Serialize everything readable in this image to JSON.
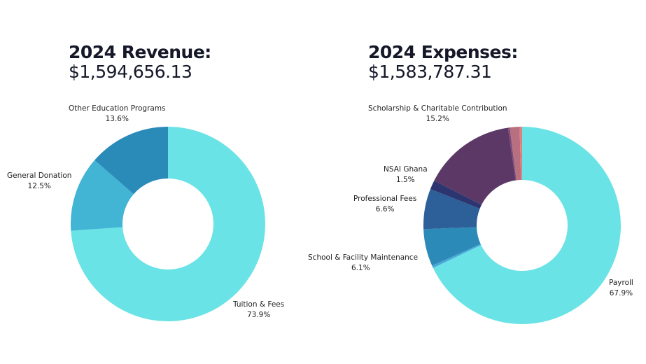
{
  "chart_data": [
    {
      "type": "pie",
      "title": "2024 Revenue:",
      "total": "$1,594,656.13",
      "slices": [
        {
          "label": "Tuition & Fees",
          "value": 73.9,
          "display": "73.9%",
          "color": "#6ae3e6"
        },
        {
          "label": "General Donation",
          "value": 12.5,
          "display": "12.5%",
          "color": "#42b4d4"
        },
        {
          "label": "Other Education Programs",
          "value": 13.6,
          "display": "13.6%",
          "color": "#2a8bb8"
        }
      ]
    },
    {
      "type": "pie",
      "title": "2024 Expenses:",
      "total": "$1,583,787.31",
      "slices": [
        {
          "label": "Payroll",
          "value": 67.9,
          "display": "67.9%",
          "color": "#6ae3e6"
        },
        {
          "label": "",
          "value": 0.4,
          "display": "",
          "color": "#4aa8d8"
        },
        {
          "label": "School & Facility Maintenance",
          "value": 6.1,
          "display": "6.1%",
          "color": "#2b8ab8"
        },
        {
          "label": "Professional Fees",
          "value": 6.6,
          "display": "6.6%",
          "color": "#2d5f98"
        },
        {
          "label": "NSAI Ghana",
          "value": 1.5,
          "display": "1.5%",
          "color": "#2c3570"
        },
        {
          "label": "Scholarship & Charitable Contribution",
          "value": 15.2,
          "display": "15.2%",
          "color": "#5c3866"
        },
        {
          "label": "",
          "value": 0.3,
          "display": "",
          "color": "#7a4a78"
        },
        {
          "label": "",
          "value": 1.6,
          "display": "",
          "color": "#b87080"
        },
        {
          "label": "",
          "value": 0.4,
          "display": "",
          "color": "#e08080"
        }
      ]
    }
  ]
}
